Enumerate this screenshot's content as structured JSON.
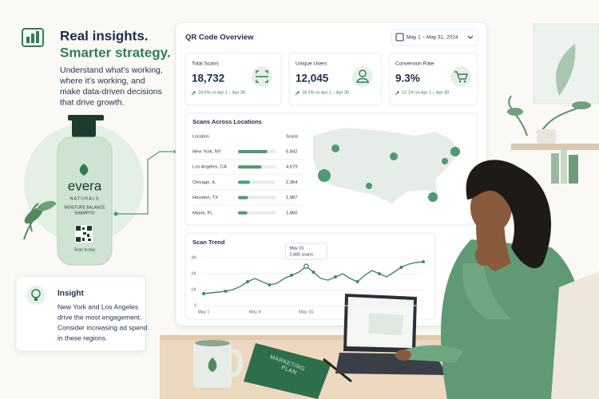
{
  "hero": {
    "title": "Real insights.",
    "subtitle": "Smarter strategy.",
    "body": [
      "Understand what’s working,",
      "where it’s working, and",
      "make data-driven decisions",
      "that drive growth."
    ]
  },
  "product": {
    "brand": "evera",
    "line": "NATURALS",
    "name": [
      "MOISTURE BALANCE",
      "SHAMPOO"
    ],
    "cta": "Scan to buy"
  },
  "insight": {
    "title": "Insight",
    "body": [
      "New York and Los Angeles",
      "drive the most engagement.",
      "Consider increasing ad spend",
      "in these regions."
    ]
  },
  "book": {
    "title": [
      "MARKETING",
      "PLAN"
    ]
  },
  "dashboard": {
    "title": "QR Code Overview",
    "date_range": "May 1 – May 31, 2024",
    "kpis": [
      {
        "label": "Total Scans",
        "value": "18,732",
        "change": "24.6% vs Apr 1 – Apr 30"
      },
      {
        "label": "Unique Users",
        "value": "12,045",
        "change": "18.3% vs Apr 1 – Apr 30"
      },
      {
        "label": "Conversion Rate",
        "value": "9.3%",
        "change": "12.1% vs Apr 1 – Apr 30"
      }
    ],
    "locations": {
      "title": "Scans Across Locations",
      "column_headers": [
        "Location",
        "Scans"
      ],
      "categories": [
        "New York, NY",
        "Los Angeles, CA",
        "Chicago, IL",
        "Houston, TX",
        "Miami, FL"
      ],
      "values": [
        5842,
        4679,
        2364,
        1987,
        1860
      ],
      "value_labels": [
        "5,842",
        "4,679",
        "2,364",
        "1,987",
        "1,860"
      ],
      "color": "#4f9a72"
    },
    "trend": {
      "type": "line",
      "title": "Scan Trend",
      "categories": [
        "May 1",
        null,
        null,
        null,
        null,
        null,
        null,
        "May 8",
        null,
        null,
        null,
        null,
        null,
        null,
        "May 15",
        null,
        null,
        null,
        null,
        null,
        null,
        null,
        null,
        null,
        null,
        null,
        null,
        null,
        null,
        null,
        null
      ],
      "values": [
        750,
        800,
        850,
        900,
        1000,
        1200,
        1500,
        1700,
        1500,
        1300,
        1400,
        1700,
        1900,
        2100,
        2465,
        2100,
        1700,
        1600,
        1800,
        2000,
        1700,
        1500,
        1900,
        2200,
        2000,
        1800,
        2100,
        2400,
        2600,
        2700,
        2750
      ],
      "ylim": [
        0,
        3000
      ],
      "yticks": [
        0,
        {
          "value": 1000,
          "label": "1K"
        },
        {
          "value": 2000,
          "label": "2K"
        },
        {
          "value": 3000,
          "label": "3K"
        }
      ],
      "color": "#3f8a60",
      "tooltip": {
        "date": "May 15",
        "label": "2,465 scans"
      }
    }
  }
}
